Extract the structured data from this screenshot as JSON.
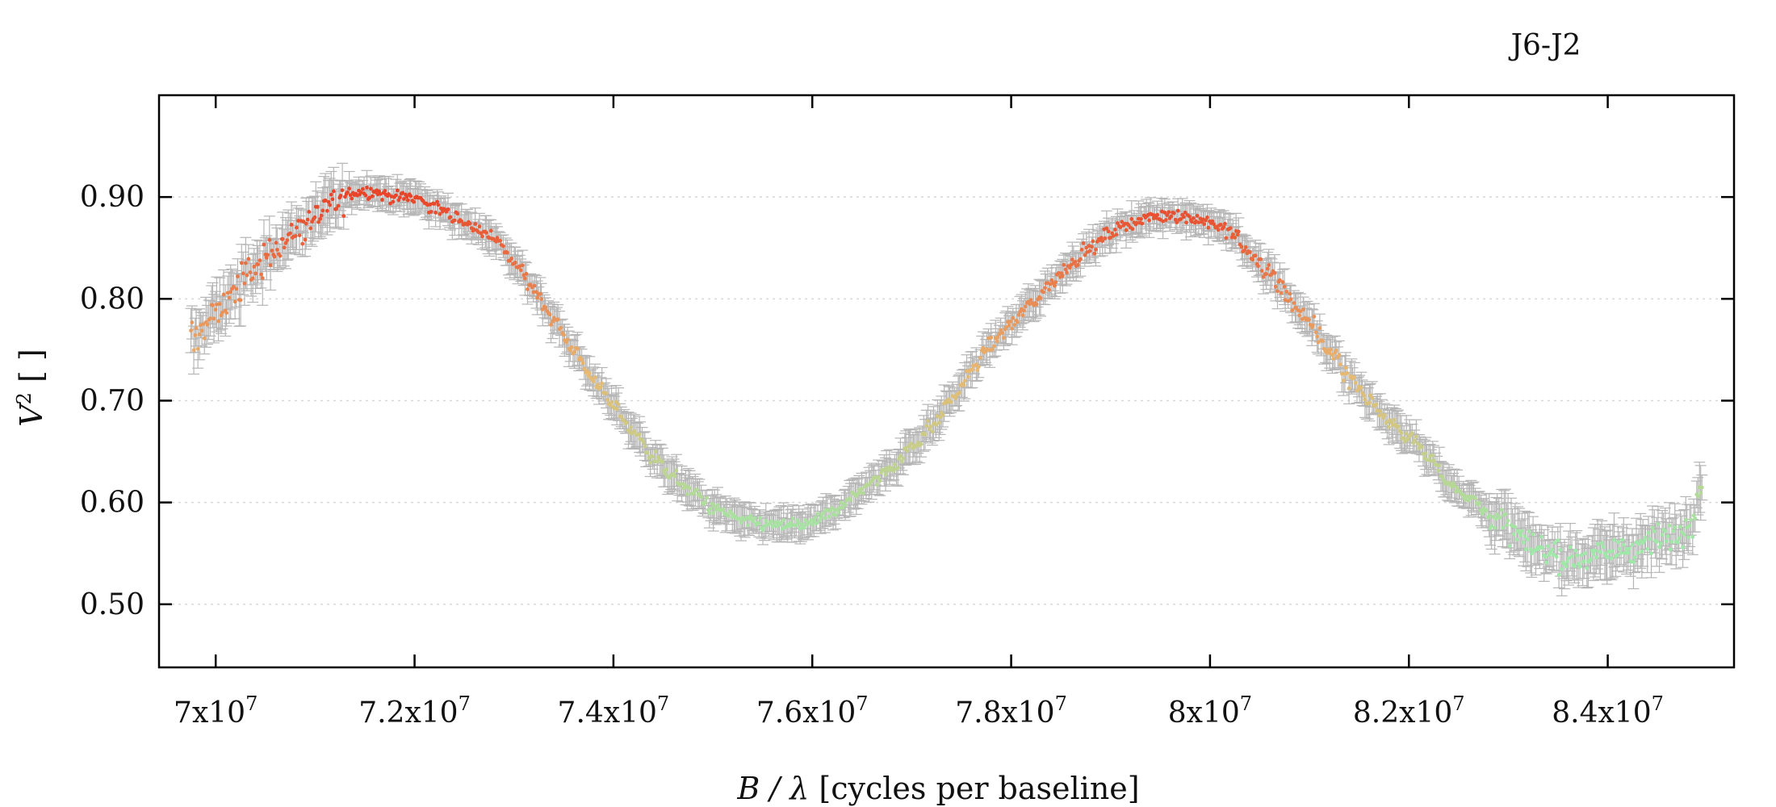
{
  "chart_data": {
    "type": "scatter",
    "title": "J6-J2",
    "xlabel_var": "B / λ",
    "xlabel_unit": " [cycles per baseline]",
    "ylabel_var": "V",
    "ylabel_sup": "2",
    "ylabel_unit": " [ ]",
    "x_tick_labels": [
      {
        "base": "7x10",
        "exp": "7",
        "value": 70000000
      },
      {
        "base": "7.2x10",
        "exp": "7",
        "value": 72000000
      },
      {
        "base": "7.4x10",
        "exp": "7",
        "value": 74000000
      },
      {
        "base": "7.6x10",
        "exp": "7",
        "value": 76000000
      },
      {
        "base": "7.8x10",
        "exp": "7",
        "value": 78000000
      },
      {
        "base": "8x10",
        "exp": "7",
        "value": 80000000
      },
      {
        "base": "8.2x10",
        "exp": "7",
        "value": 82000000
      },
      {
        "base": "8.4x10",
        "exp": "7",
        "value": 84000000
      }
    ],
    "y_tick_labels": [
      {
        "label": "0.90",
        "value": 0.9
      },
      {
        "label": "0.80",
        "value": 0.8
      },
      {
        "label": "0.70",
        "value": 0.7
      },
      {
        "label": "0.60",
        "value": 0.6
      },
      {
        "label": "0.50",
        "value": 0.5
      }
    ],
    "xlim": [
      69430000,
      85270000
    ],
    "ylim": [
      0.438,
      1.0
    ],
    "grid": "horizontal dotted",
    "colormap": "green (low V²) to red (high V²)",
    "color_low": "#9ee8a8",
    "color_mid": "#e8b870",
    "color_high": "#e8452a",
    "errorbar_color": "#b5b5b5",
    "x": [
      69750000,
      70000000,
      70200000,
      70400000,
      70600000,
      70800000,
      71000000,
      71200000,
      71400000,
      71600000,
      71800000,
      72000000,
      72200000,
      72400000,
      72600000,
      72800000,
      73000000,
      73200000,
      73400000,
      73600000,
      73800000,
      74000000,
      74200000,
      74400000,
      74600000,
      74800000,
      75000000,
      75200000,
      75400000,
      75600000,
      75800000,
      76000000,
      76200000,
      76400000,
      76600000,
      76800000,
      77000000,
      77200000,
      77400000,
      77600000,
      77800000,
      78000000,
      78200000,
      78400000,
      78600000,
      78800000,
      79000000,
      79200000,
      79400000,
      79600000,
      79800000,
      80000000,
      80200000,
      80400000,
      80600000,
      80800000,
      81000000,
      81200000,
      81400000,
      81600000,
      81800000,
      82000000,
      82200000,
      82400000,
      82600000,
      82800000,
      83000000,
      83200000,
      83400000,
      83600000,
      83800000,
      84000000,
      84200000,
      84400000,
      84600000,
      84800000,
      84950000
    ],
    "y": [
      0.76,
      0.785,
      0.81,
      0.83,
      0.85,
      0.865,
      0.88,
      0.895,
      0.905,
      0.905,
      0.9,
      0.9,
      0.89,
      0.88,
      0.87,
      0.86,
      0.835,
      0.81,
      0.78,
      0.75,
      0.72,
      0.695,
      0.67,
      0.645,
      0.625,
      0.61,
      0.595,
      0.585,
      0.58,
      0.578,
      0.578,
      0.58,
      0.59,
      0.605,
      0.62,
      0.635,
      0.655,
      0.675,
      0.7,
      0.73,
      0.755,
      0.775,
      0.795,
      0.815,
      0.835,
      0.85,
      0.865,
      0.875,
      0.88,
      0.882,
      0.88,
      0.875,
      0.865,
      0.845,
      0.825,
      0.8,
      0.775,
      0.75,
      0.725,
      0.7,
      0.68,
      0.665,
      0.645,
      0.62,
      0.605,
      0.59,
      0.575,
      0.56,
      0.548,
      0.545,
      0.548,
      0.552,
      0.555,
      0.56,
      0.565,
      0.575,
      0.62
    ],
    "yerr_typical": 0.012,
    "n_points_approx": 1100
  }
}
